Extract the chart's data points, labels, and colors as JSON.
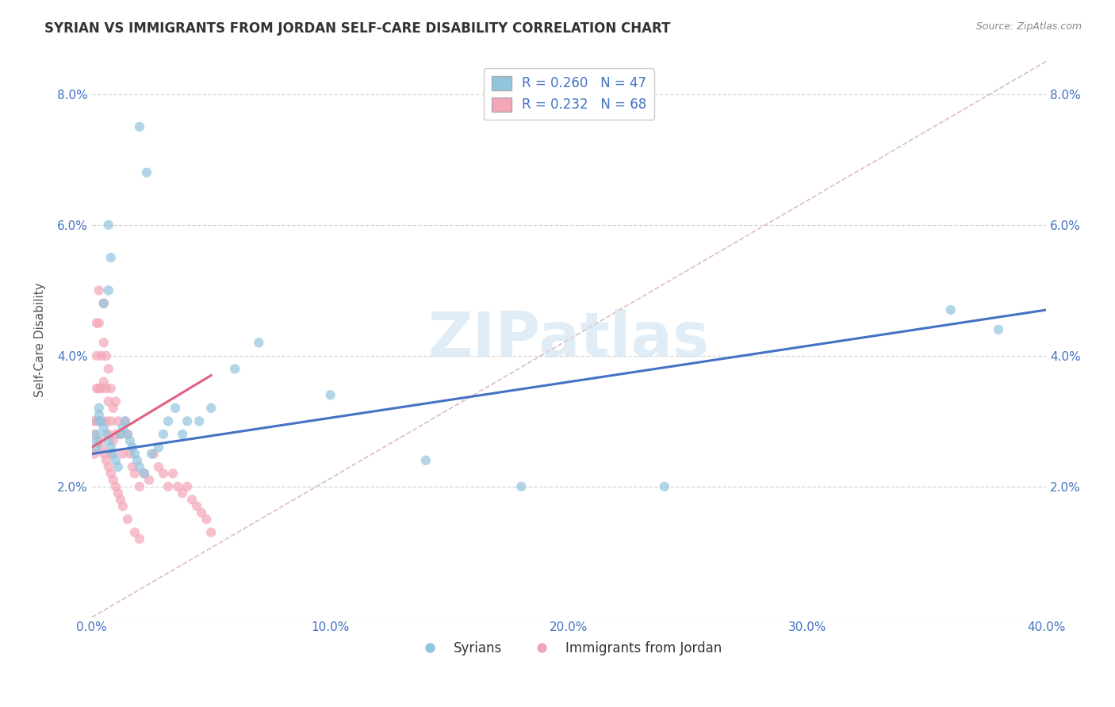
{
  "title": "SYRIAN VS IMMIGRANTS FROM JORDAN SELF-CARE DISABILITY CORRELATION CHART",
  "source": "Source: ZipAtlas.com",
  "xlabel": "",
  "ylabel": "Self-Care Disability",
  "xlim": [
    0.0,
    0.4
  ],
  "ylim": [
    0.0,
    0.085
  ],
  "xticks": [
    0.0,
    0.1,
    0.2,
    0.3,
    0.4
  ],
  "xtick_labels": [
    "0.0%",
    "10.0%",
    "20.0%",
    "30.0%",
    "40.0%"
  ],
  "yticks": [
    0.0,
    0.02,
    0.04,
    0.06,
    0.08
  ],
  "ytick_labels": [
    "",
    "2.0%",
    "4.0%",
    "6.0%",
    "8.0%"
  ],
  "syrian_color": "#92c5de",
  "jordan_color": "#f4a6b8",
  "syrian_line_color": "#4472c4",
  "jordan_line_color": "#e06080",
  "R_syrian": 0.26,
  "N_syrian": 47,
  "R_jordan": 0.232,
  "N_jordan": 68,
  "legend_label_1": "Syrians",
  "legend_label_2": "Immigrants from Jordan",
  "watermark": "ZIPatlas",
  "background_color": "#ffffff",
  "grid_color": "#cccccc",
  "title_color": "#333333",
  "axis_label_color": "#555555",
  "tick_color": "#4472c4",
  "syrian_line_x": [
    0.0,
    0.4
  ],
  "syrian_line_y": [
    0.025,
    0.047
  ],
  "jordan_line_x": [
    0.0,
    0.05
  ],
  "jordan_line_y": [
    0.026,
    0.037
  ],
  "diag_line_x": [
    0.0,
    0.4
  ],
  "diag_line_y": [
    0.0,
    0.085
  ],
  "syrian_scatter_x": [
    0.02,
    0.023,
    0.007,
    0.008,
    0.007,
    0.005,
    0.003,
    0.003,
    0.002,
    0.002,
    0.002,
    0.003,
    0.004,
    0.005,
    0.006,
    0.007,
    0.008,
    0.009,
    0.01,
    0.011,
    0.012,
    0.013,
    0.014,
    0.015,
    0.016,
    0.017,
    0.018,
    0.019,
    0.02,
    0.022,
    0.025,
    0.028,
    0.03,
    0.032,
    0.035,
    0.038,
    0.04,
    0.045,
    0.05,
    0.06,
    0.07,
    0.1,
    0.14,
    0.18,
    0.24,
    0.36,
    0.38
  ],
  "syrian_scatter_y": [
    0.075,
    0.068,
    0.06,
    0.055,
    0.05,
    0.048,
    0.032,
    0.03,
    0.028,
    0.027,
    0.026,
    0.031,
    0.03,
    0.029,
    0.028,
    0.027,
    0.026,
    0.025,
    0.024,
    0.023,
    0.028,
    0.029,
    0.03,
    0.028,
    0.027,
    0.026,
    0.025,
    0.024,
    0.023,
    0.022,
    0.025,
    0.026,
    0.028,
    0.03,
    0.032,
    0.028,
    0.03,
    0.03,
    0.032,
    0.038,
    0.042,
    0.034,
    0.024,
    0.02,
    0.02,
    0.047,
    0.044
  ],
  "jordan_scatter_x": [
    0.001,
    0.001,
    0.001,
    0.002,
    0.002,
    0.002,
    0.002,
    0.003,
    0.003,
    0.003,
    0.003,
    0.004,
    0.004,
    0.004,
    0.005,
    0.005,
    0.005,
    0.006,
    0.006,
    0.006,
    0.007,
    0.007,
    0.007,
    0.008,
    0.008,
    0.008,
    0.009,
    0.009,
    0.01,
    0.01,
    0.011,
    0.012,
    0.013,
    0.014,
    0.015,
    0.016,
    0.017,
    0.018,
    0.02,
    0.022,
    0.024,
    0.026,
    0.028,
    0.03,
    0.032,
    0.034,
    0.036,
    0.038,
    0.04,
    0.042,
    0.044,
    0.046,
    0.048,
    0.05,
    0.003,
    0.004,
    0.005,
    0.006,
    0.007,
    0.008,
    0.009,
    0.01,
    0.011,
    0.012,
    0.013,
    0.015,
    0.018,
    0.02
  ],
  "jordan_scatter_y": [
    0.03,
    0.028,
    0.025,
    0.045,
    0.04,
    0.035,
    0.03,
    0.05,
    0.045,
    0.035,
    0.03,
    0.04,
    0.035,
    0.03,
    0.048,
    0.042,
    0.036,
    0.04,
    0.035,
    0.03,
    0.038,
    0.033,
    0.028,
    0.035,
    0.03,
    0.025,
    0.032,
    0.027,
    0.033,
    0.028,
    0.03,
    0.028,
    0.025,
    0.03,
    0.028,
    0.025,
    0.023,
    0.022,
    0.02,
    0.022,
    0.021,
    0.025,
    0.023,
    0.022,
    0.02,
    0.022,
    0.02,
    0.019,
    0.02,
    0.018,
    0.017,
    0.016,
    0.015,
    0.013,
    0.027,
    0.026,
    0.025,
    0.024,
    0.023,
    0.022,
    0.021,
    0.02,
    0.019,
    0.018,
    0.017,
    0.015,
    0.013,
    0.012
  ]
}
